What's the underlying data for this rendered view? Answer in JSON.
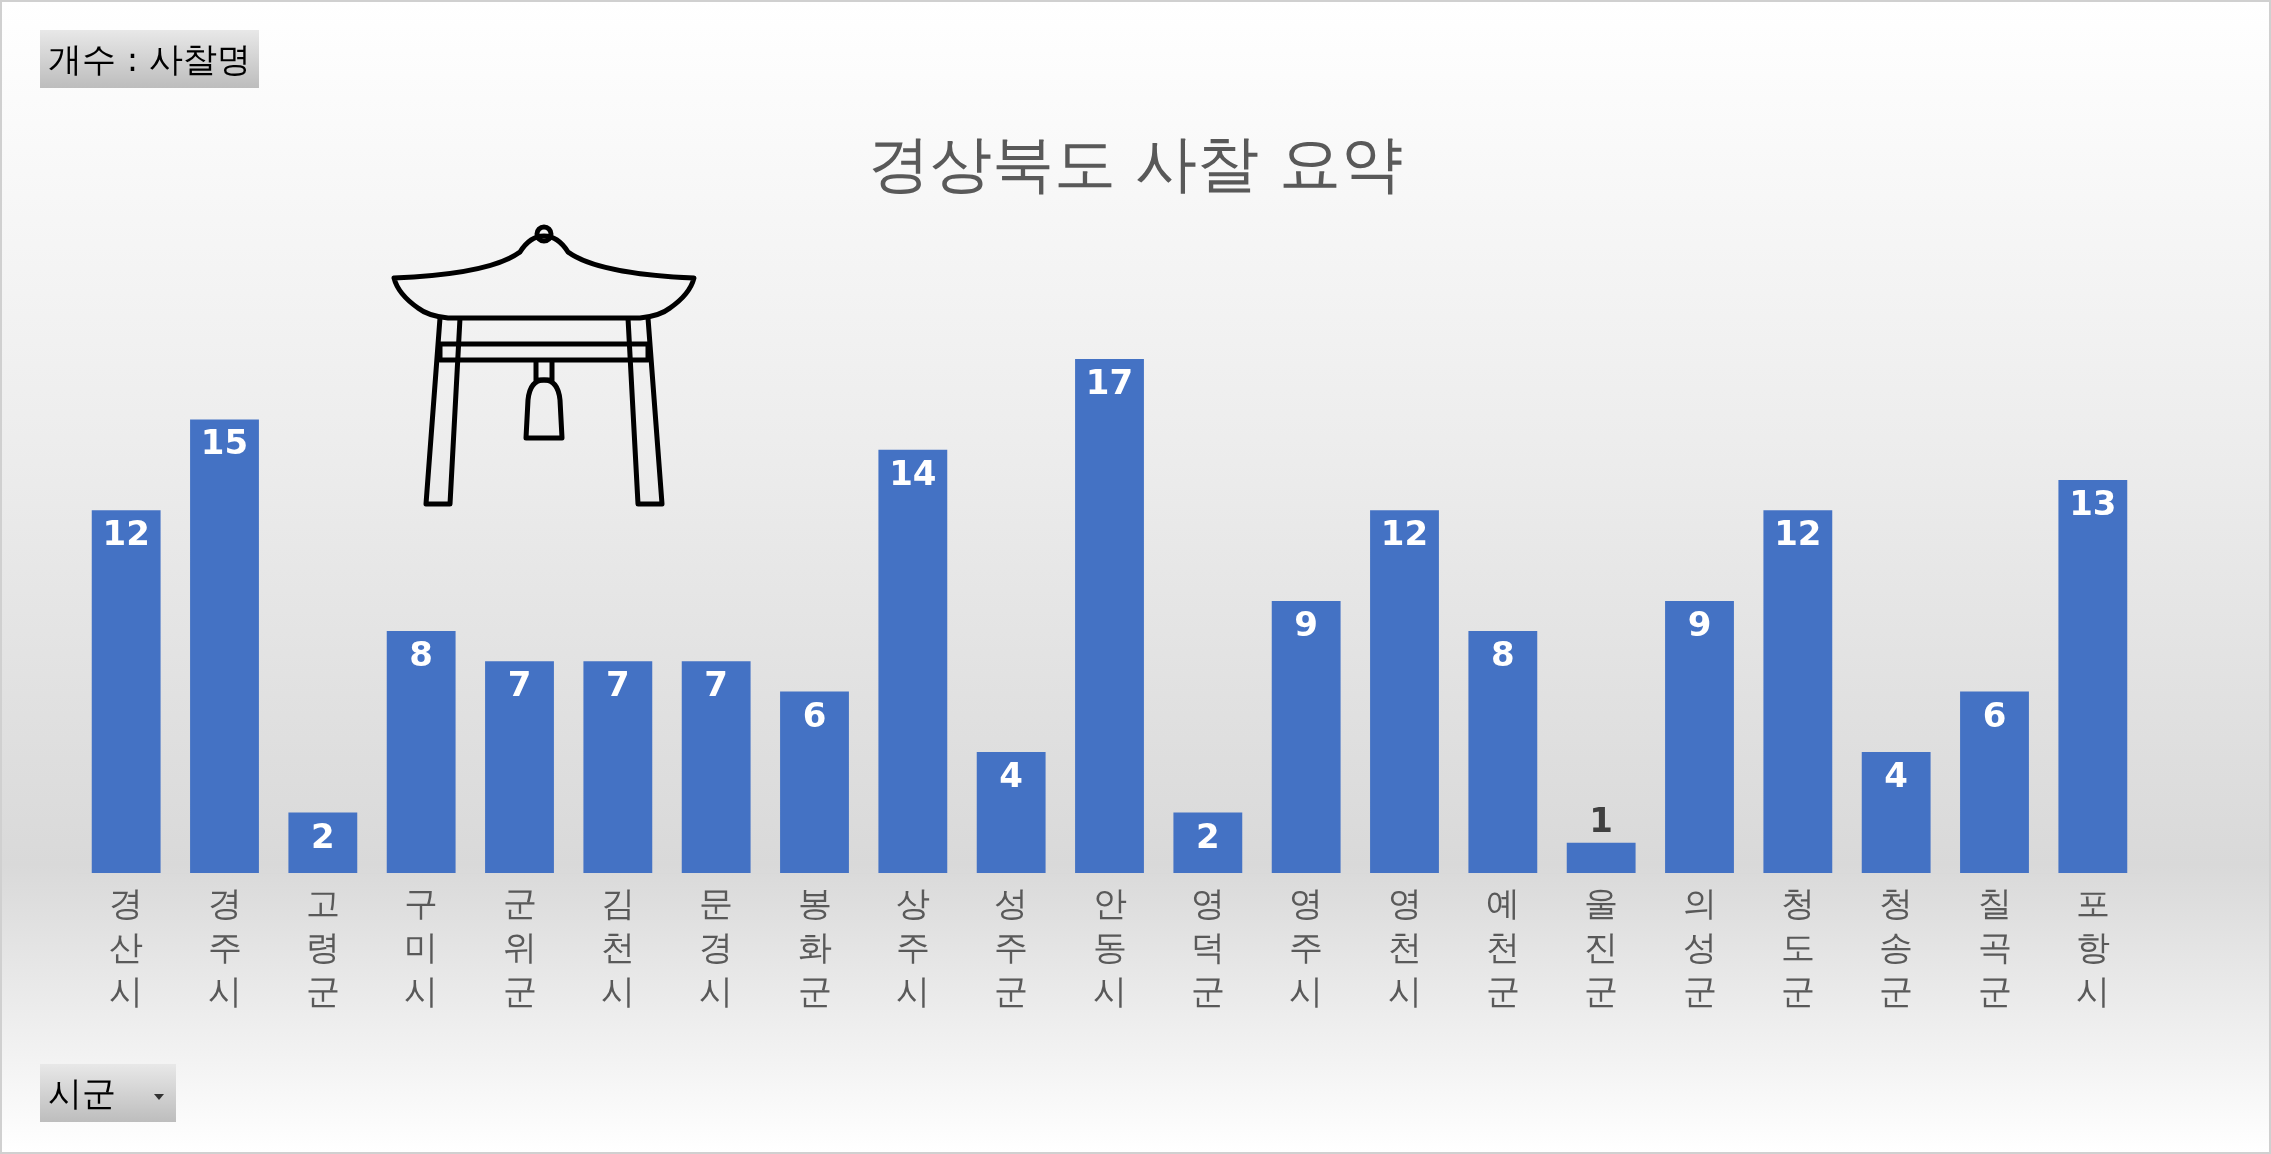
{
  "chart_data": {
    "type": "bar",
    "title": "경상북도 사찰 요약",
    "categories": [
      "경산시",
      "경주시",
      "고령군",
      "구미시",
      "군위군",
      "김천시",
      "문경시",
      "봉화군",
      "상주시",
      "성주군",
      "안동시",
      "영덕군",
      "영주시",
      "영천시",
      "예천군",
      "울진군",
      "의성군",
      "청도군",
      "청송군",
      "칠곡군",
      "포항시"
    ],
    "values": [
      12,
      15,
      2,
      8,
      7,
      7,
      7,
      6,
      14,
      4,
      17,
      2,
      9,
      12,
      8,
      1,
      9,
      12,
      4,
      6,
      13
    ],
    "color": "#4472c4",
    "data_labels": true,
    "annotations": [
      "개수 : 사찰명",
      "시군"
    ]
  }
}
